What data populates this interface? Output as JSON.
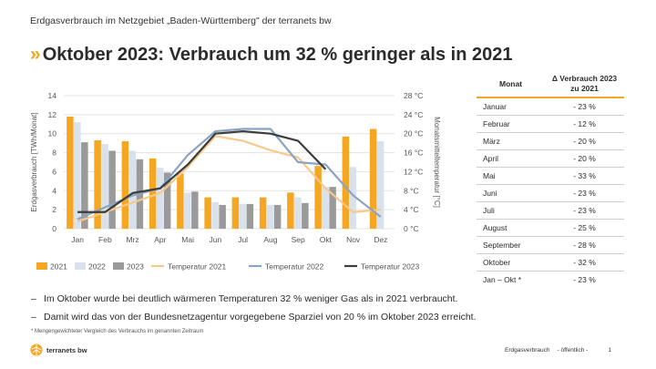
{
  "header": {
    "supertitle": "Erdgasverbrauch im Netzgebiet „Baden-Württemberg\" der terranets bw",
    "chevron": "»",
    "title": "Oktober 2023: Verbrauch um 32 % geringer als in 2021"
  },
  "colors": {
    "accent": "#f5a623",
    "bar2021": "#f5a623",
    "bar2022": "#d9e1ec",
    "bar2023": "#9a9a9a",
    "temp2021": "#f9c98c",
    "temp2022": "#8ba4c2",
    "temp2023": "#3d3d3d"
  },
  "chart_data": {
    "type": "bar",
    "categories": [
      "Jan",
      "Feb",
      "Mrz",
      "Apr",
      "Mai",
      "Jun",
      "Jul",
      "Aug",
      "Sep",
      "Okt",
      "Nov",
      "Dez"
    ],
    "ylabel": "Erdgasverbrauch [TWh/Monat]",
    "ylabel_right": "Monatsmitteltemperatur [°C]",
    "ylim": [
      0,
      14
    ],
    "yticks": [
      "0",
      "2",
      "4",
      "6",
      "8",
      "10",
      "12",
      "14"
    ],
    "ylim_right": [
      0,
      28
    ],
    "yticks_right": [
      "0 °C",
      "4 °C",
      "8 °C",
      "12 °C",
      "16 °C",
      "20 °C",
      "24 °C",
      "28 °C"
    ],
    "grid": true,
    "legend_position": "bottom",
    "series": [
      {
        "name": "2021",
        "kind": "bar",
        "values": [
          11.8,
          9.3,
          9.2,
          7.4,
          5.8,
          3.3,
          3.3,
          3.3,
          3.8,
          6.6,
          9.7,
          10.5
        ]
      },
      {
        "name": "2022",
        "kind": "bar",
        "values": [
          11.2,
          8.9,
          8.2,
          6.4,
          3.8,
          2.8,
          2.6,
          2.5,
          3.3,
          4.4,
          6.5,
          9.2
        ]
      },
      {
        "name": "2023",
        "kind": "bar",
        "values": [
          9.1,
          8.2,
          7.3,
          5.9,
          3.9,
          2.5,
          2.6,
          2.5,
          2.7,
          4.4,
          null,
          null
        ]
      },
      {
        "name": "Temperatur 2021",
        "kind": "line",
        "axis": "right",
        "values": [
          1.5,
          3.5,
          5.5,
          7.5,
          13.0,
          19.5,
          18.5,
          16.5,
          15.0,
          8.5,
          3.5,
          4.0
        ]
      },
      {
        "name": "Temperatur 2022",
        "kind": "line",
        "axis": "right",
        "values": [
          2.0,
          4.5,
          7.0,
          8.5,
          15.5,
          20.5,
          21.0,
          21.0,
          14.0,
          13.5,
          7.0,
          2.5
        ]
      },
      {
        "name": "Temperatur 2023",
        "kind": "line",
        "axis": "right",
        "values": [
          3.5,
          3.5,
          7.5,
          8.5,
          13.5,
          20.0,
          20.5,
          20.0,
          18.5,
          12.5,
          null,
          null
        ]
      }
    ]
  },
  "table": {
    "col1": "Monat",
    "col2_line1": "Δ Verbrauch 2023",
    "col2_line2": "zu 2021",
    "rows": [
      {
        "month": "Januar",
        "delta": "- 23 %"
      },
      {
        "month": "Februar",
        "delta": "- 12 %"
      },
      {
        "month": "März",
        "delta": "- 20 %"
      },
      {
        "month": "April",
        "delta": "- 20 %"
      },
      {
        "month": "Mai",
        "delta": "- 33 %"
      },
      {
        "month": "Juni",
        "delta": "- 23 %"
      },
      {
        "month": "Juli",
        "delta": "- 23 %"
      },
      {
        "month": "August",
        "delta": "- 25 %"
      },
      {
        "month": "September",
        "delta": "- 28 %"
      },
      {
        "month": "Oktober",
        "delta": "- 32 %"
      }
    ],
    "total": {
      "month": "Jan – Okt *",
      "delta": "- 23 %"
    }
  },
  "bullets": [
    "Im Oktober wurde bei deutlich wärmeren Temperaturen 32 % weniger Gas als in 2021 verbraucht.",
    "Damit wird das von der Bundesnetzagentur vorgegebene Sparziel von 20 % im Oktober 2023 erreicht."
  ],
  "bullet_marker": "–",
  "footnote": "* Mengengewichteter Vergleich des Verbrauchs im genannten Zeitraum",
  "logo": {
    "text": "terranets bw"
  },
  "footer": {
    "label": "Erdgasverbrauch",
    "classification": "- öffentlich -",
    "page": "1"
  }
}
